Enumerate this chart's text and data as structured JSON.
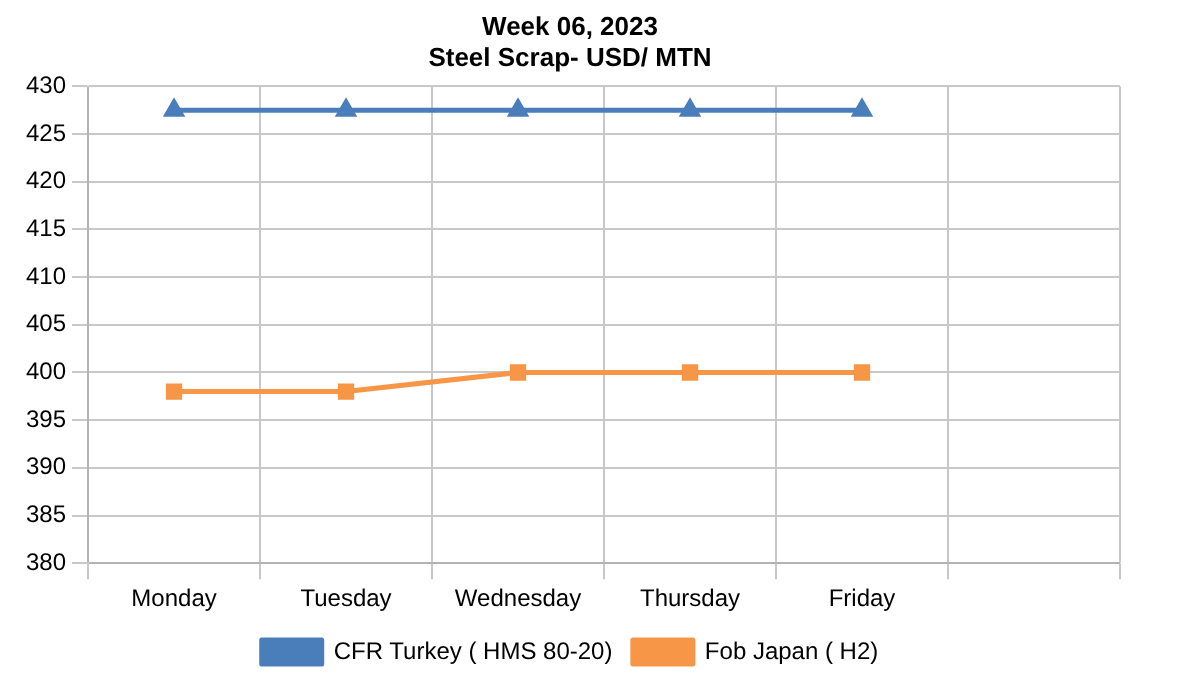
{
  "chart_data": {
    "type": "line",
    "title": "Week 06, 2023",
    "subtitle": "Steel Scrap- USD/ MTN",
    "categories": [
      "Monday",
      "Tuesday",
      "Wednesday",
      "Thursday",
      "Friday",
      null
    ],
    "series": [
      {
        "name": "CFR Turkey ( HMS 80-20)",
        "color": "#4a7ebb",
        "marker": "triangle",
        "values": [
          427.5,
          427.5,
          427.5,
          427.5,
          427.5,
          null
        ]
      },
      {
        "name": "Fob Japan ( H2)",
        "color": "#f79646",
        "marker": "square",
        "values": [
          398,
          398,
          400,
          400,
          400,
          null
        ]
      }
    ],
    "ylim": [
      380,
      430
    ],
    "yticks": [
      380,
      385,
      390,
      395,
      400,
      405,
      410,
      415,
      420,
      425,
      430
    ],
    "grid": true,
    "legend": "bottom"
  }
}
